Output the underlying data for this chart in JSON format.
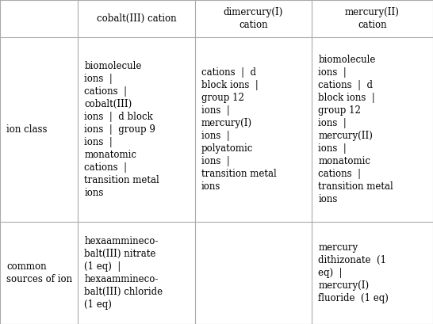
{
  "col_headers": [
    "cobalt(III) cation",
    "dimercury(I)\ncation",
    "mercury(II)\ncation"
  ],
  "row_headers": [
    "ion class",
    "common\nsources of ion"
  ],
  "cells": [
    [
      "biomolecule\nions  |\ncations  |\ncobalt(III)\nions  |  d block\nions  |  group 9\nions  |\nmonatomic\ncations  |\ntransition metal\nions",
      "cations  |  d\nblock ions  |\ngroup 12\nions  |\nmercury(I)\nions  |\npolyatomic\nions  |\ntransition metal\nions",
      "biomolecule\nions  |\ncations  |  d\nblock ions  |\ngroup 12\nions  |\nmercury(II)\nions  |\nmonatomic\ncations  |\ntransition metal\nions"
    ],
    [
      "hexaammineco-\nbalt(III) nitrate\n(1 eq)  |\nhexaammineco-\nbalt(III) chloride\n(1 eq)",
      "",
      "mercury\ndithizonate  (1\neq)  |\nmercury(I)\nfluoride  (1 eq)"
    ]
  ],
  "cell_sources_gray_parts": [
    [
      "(1 eq)",
      "(1 eq)",
      "(1 eq)",
      "(1 eq)"
    ],
    [
      "(1 eq)",
      "(1 eq)"
    ]
  ],
  "background_color": "#ffffff",
  "header_bg_color": "#ffffff",
  "grid_color": "#aaaaaa",
  "text_color": "#000000",
  "gray_text_color": "#999999",
  "font_size": 8.5,
  "header_font_size": 8.5
}
